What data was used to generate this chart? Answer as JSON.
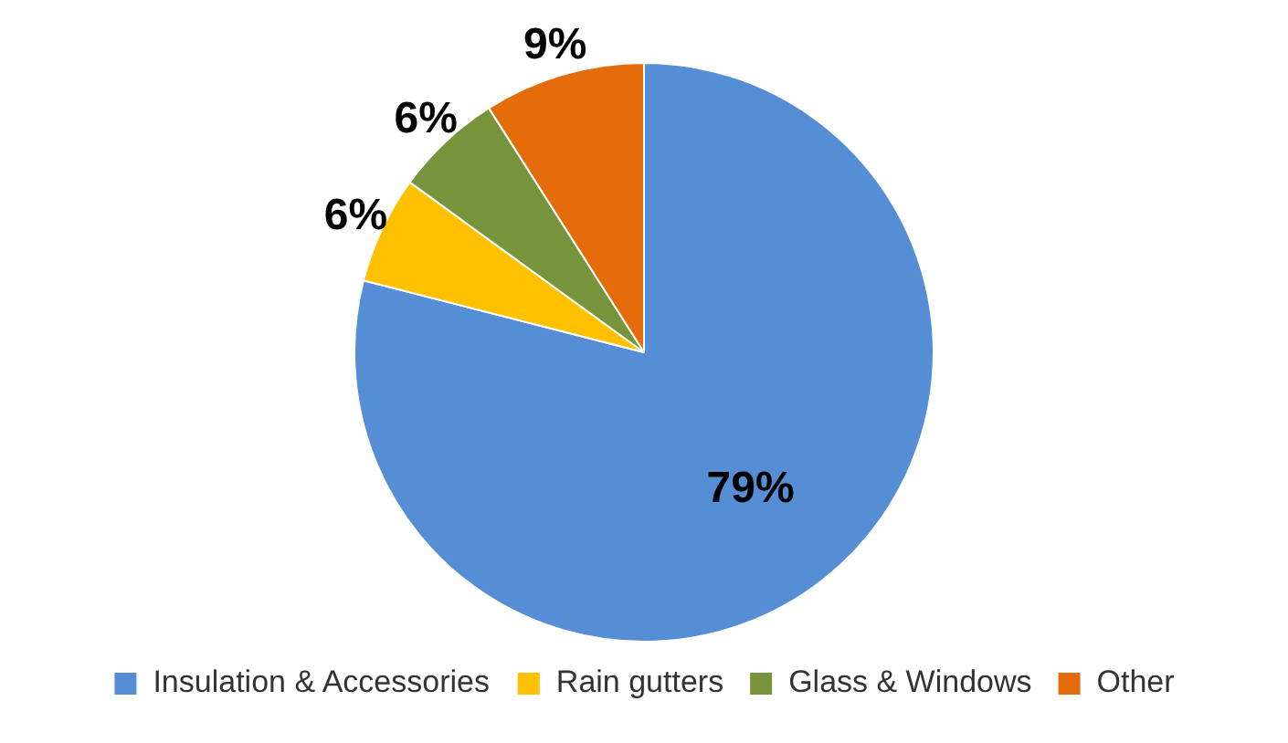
{
  "chart_data": {
    "type": "pie",
    "categories": [
      "Insulation & Accessories",
      "Rain gutters",
      "Glass & Windows",
      "Other"
    ],
    "values": [
      79,
      6,
      6,
      9
    ],
    "colors": [
      "#558ed5",
      "#ffc000",
      "#77933c",
      "#e46c0a"
    ],
    "value_labels": [
      "79%",
      "6%",
      "6%",
      "9%"
    ],
    "legend": "bottom"
  }
}
